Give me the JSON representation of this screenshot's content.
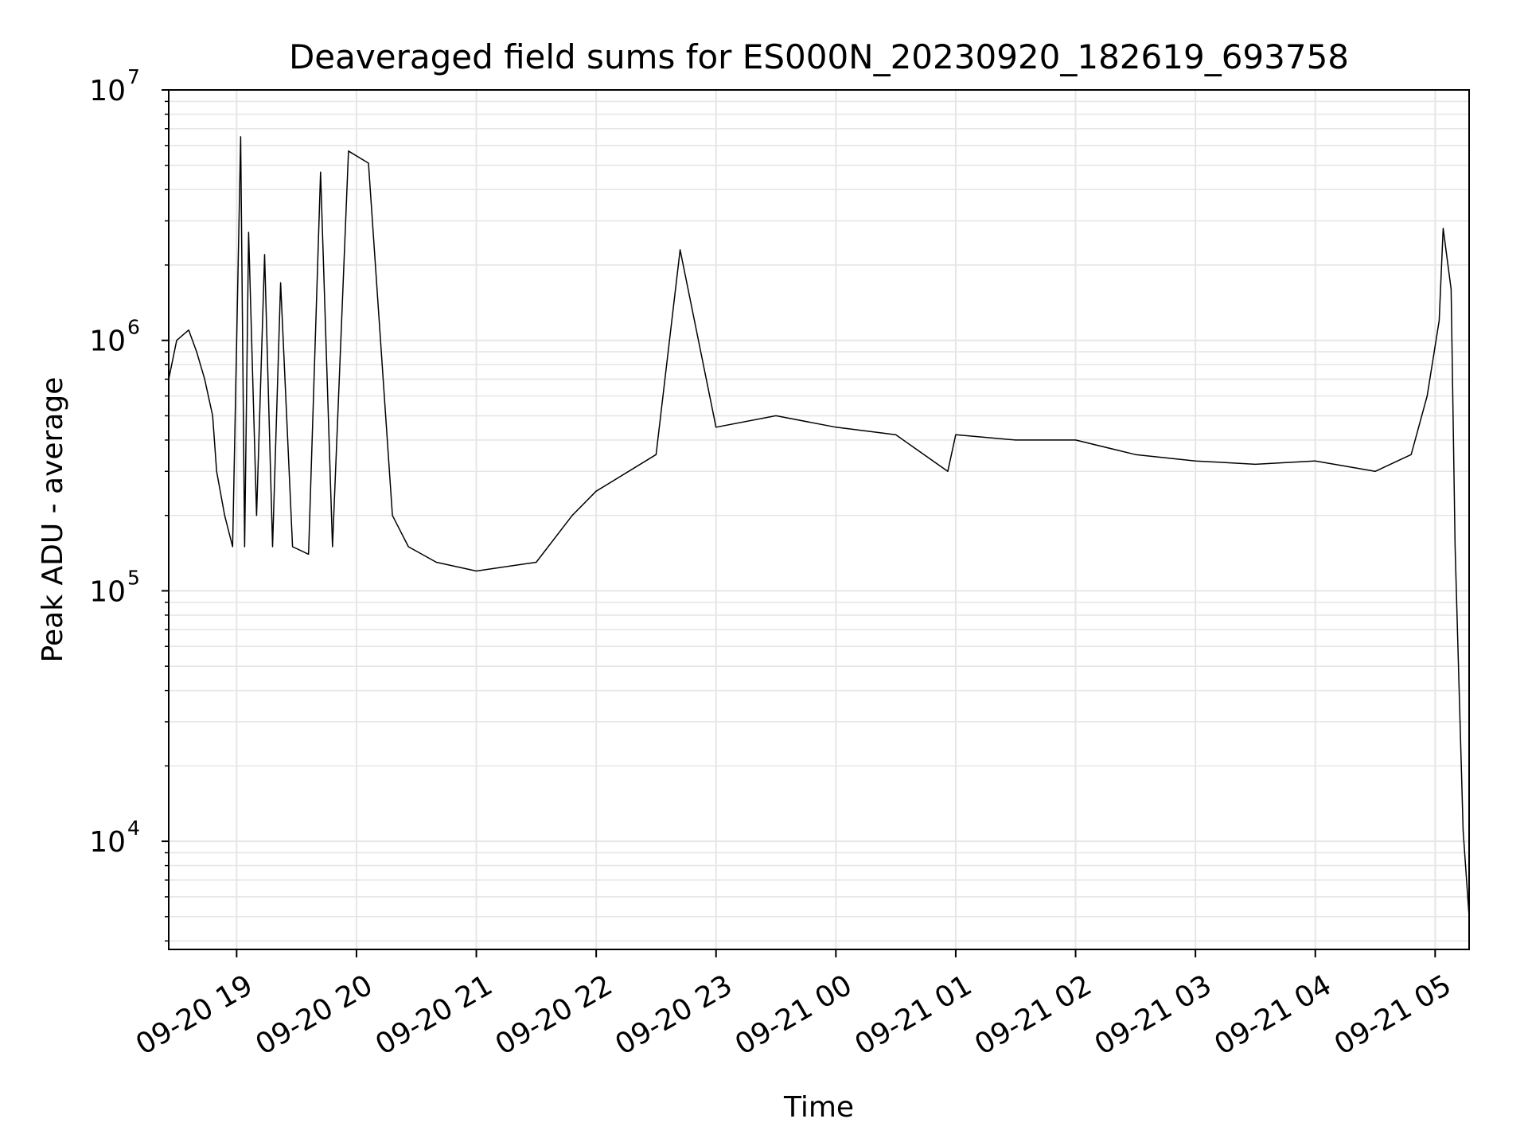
{
  "chart_data": {
    "type": "line",
    "title": "Deaveraged field sums for ES000N_20230920_182619_693758",
    "xlabel": "Time",
    "ylabel": "Peak ADU - average",
    "yscale": "log",
    "ylim": [
      3700,
      10000000
    ],
    "xlim": [
      "2023-09-20 18:26",
      "2023-09-21 05:17"
    ],
    "x_ticks": [
      "09-20 19",
      "09-20 20",
      "09-20 21",
      "09-20 22",
      "09-20 23",
      "09-21 00",
      "09-21 01",
      "09-21 02",
      "09-21 03",
      "09-21 04",
      "09-21 05"
    ],
    "x_tick_times": [
      "2023-09-20 19:00",
      "2023-09-20 20:00",
      "2023-09-20 21:00",
      "2023-09-20 22:00",
      "2023-09-20 23:00",
      "2023-09-21 00:00",
      "2023-09-21 01:00",
      "2023-09-21 02:00",
      "2023-09-21 03:00",
      "2023-09-21 04:00",
      "2023-09-21 05:00"
    ],
    "y_ticks": [
      {
        "value": 10000,
        "base": "10",
        "exp": "4"
      },
      {
        "value": 100000,
        "base": "10",
        "exp": "5"
      },
      {
        "value": 1000000,
        "base": "10",
        "exp": "6"
      },
      {
        "value": 10000000,
        "base": "10",
        "exp": "7"
      }
    ],
    "grid": true,
    "line_color": "#000000",
    "grid_color": "#e6e6e6",
    "series": [
      {
        "x": [
          "2023-09-20 18:26",
          "2023-09-20 18:30",
          "2023-09-20 18:36",
          "2023-09-20 18:40",
          "2023-09-20 18:44",
          "2023-09-20 18:48",
          "2023-09-20 18:50",
          "2023-09-20 18:54",
          "2023-09-20 18:58",
          "2023-09-20 19:02",
          "2023-09-20 19:04",
          "2023-09-20 19:06",
          "2023-09-20 19:10",
          "2023-09-20 19:14",
          "2023-09-20 19:18",
          "2023-09-20 19:22",
          "2023-09-20 19:28",
          "2023-09-20 19:36",
          "2023-09-20 19:42",
          "2023-09-20 19:48",
          "2023-09-20 19:56",
          "2023-09-20 20:06",
          "2023-09-20 20:18",
          "2023-09-20 20:26",
          "2023-09-20 20:40",
          "2023-09-20 21:00",
          "2023-09-20 21:30",
          "2023-09-20 21:48",
          "2023-09-20 22:00",
          "2023-09-20 22:30",
          "2023-09-20 22:42",
          "2023-09-20 23:00",
          "2023-09-20 23:30",
          "2023-09-21 00:00",
          "2023-09-21 00:30",
          "2023-09-21 00:56",
          "2023-09-21 01:00",
          "2023-09-21 01:30",
          "2023-09-21 02:00",
          "2023-09-21 02:30",
          "2023-09-21 03:00",
          "2023-09-21 03:30",
          "2023-09-21 04:00",
          "2023-09-21 04:30",
          "2023-09-21 04:48",
          "2023-09-21 04:56",
          "2023-09-21 05:02",
          "2023-09-21 05:04",
          "2023-09-21 05:08",
          "2023-09-21 05:10",
          "2023-09-21 05:12",
          "2023-09-21 05:14",
          "2023-09-21 05:17"
        ],
        "y": [
          700000,
          1000000,
          1100000,
          900000,
          700000,
          500000,
          300000,
          200000,
          150000,
          6500000,
          150000,
          2700000,
          200000,
          2200000,
          150000,
          1700000,
          150000,
          140000,
          4700000,
          150000,
          5700000,
          5100000,
          200000,
          150000,
          130000,
          120000,
          130000,
          200000,
          250000,
          350000,
          2300000,
          450000,
          500000,
          450000,
          420000,
          300000,
          420000,
          400000,
          400000,
          350000,
          330000,
          320000,
          330000,
          300000,
          350000,
          600000,
          1200000,
          2800000,
          1600000,
          150000,
          40000,
          11000,
          5000
        ]
      }
    ]
  }
}
